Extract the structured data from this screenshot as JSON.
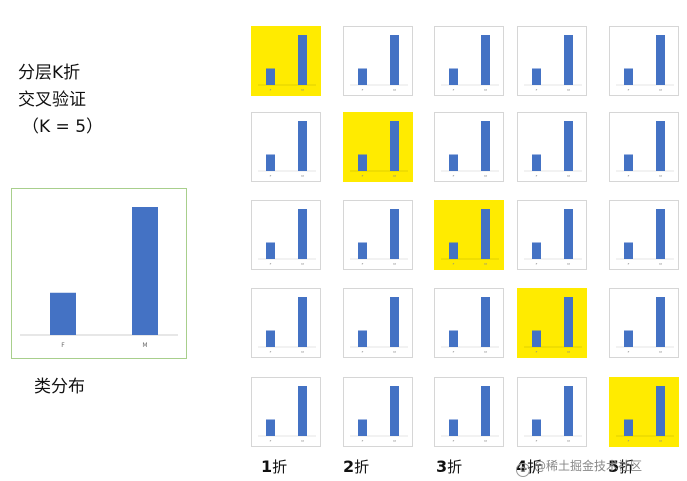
{
  "title": {
    "line1": "分层K折",
    "line2": "交叉验证",
    "line3": "（K = 5）"
  },
  "class_distribution": {
    "caption": "类分布",
    "chart_data": {
      "type": "bar",
      "categories": [
        "F",
        "M"
      ],
      "values": [
        0.33,
        1.0
      ],
      "bar_color": "#4472c4"
    }
  },
  "grid": {
    "rows": 5,
    "cols": 5,
    "highlight_color": "#ffeb00",
    "bar_color": "#4472c4",
    "cell_tick_labels": [
      "F",
      "M"
    ],
    "cell_values": [
      0.33,
      1.0
    ]
  },
  "folds": [
    {
      "num": "1",
      "han": "折"
    },
    {
      "num": "2",
      "han": "折"
    },
    {
      "num": "3",
      "han": "折"
    },
    {
      "num": "4",
      "han": "折"
    },
    {
      "num": "5",
      "han": "折"
    }
  ],
  "watermark": "@稀土掘金技术社区"
}
